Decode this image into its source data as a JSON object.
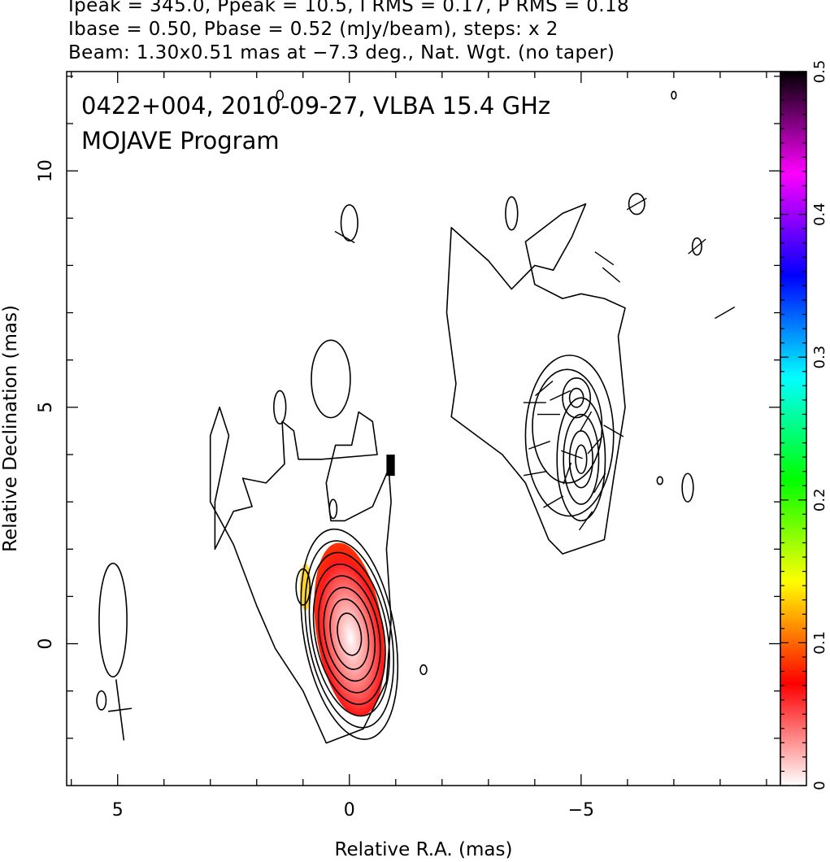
{
  "header": {
    "line1": "Ipeak = 345.0, Ppeak = 10.5, I RMS = 0.17, P RMS = 0.18",
    "line2": "Ibase = 0.50, Pbase = 0.52 (mJy/beam), steps: x 2",
    "line3": "Beam: 1.30x0.51 mas at −7.3 deg., Nat. Wgt. (no taper)"
  },
  "chart_data": {
    "type": "heatmap",
    "title": "0422+004, 2010-09-27, VLBA 15.4 GHz",
    "subtitle": "MOJAVE Program",
    "xlabel": "Relative R.A. (mas)",
    "ylabel": "Relative Declination (mas)",
    "xlim": [
      6.1,
      -9.3
    ],
    "ylim": [
      -3.0,
      12.1
    ],
    "x_ticks": [
      5,
      0,
      -5
    ],
    "x_tick_labels": [
      "5",
      "0",
      "−5"
    ],
    "y_ticks": [
      0,
      5,
      10
    ],
    "y_tick_labels": [
      "0",
      "5",
      "10"
    ],
    "colorbar": {
      "range": [
        0,
        0.5
      ],
      "ticks": [
        0,
        0.1,
        0.2,
        0.3,
        0.4,
        0.5
      ],
      "tick_labels": [
        "0",
        "0.1",
        "0.2",
        "0.3",
        "0.4",
        "0.5"
      ],
      "stops": [
        "#ffffff",
        "#ff0000",
        "#ffff00",
        "#00ff00",
        "#00ffff",
        "#0000ff",
        "#ff00ff",
        "#000000"
      ]
    },
    "beam": {
      "major_mas": 1.3,
      "minor_mas": 0.51,
      "pa_deg": -7.3,
      "center": [
        4.95,
        -1.4
      ]
    },
    "core_contours": {
      "center": [
        0.0,
        0.2
      ],
      "semi_axes_mas": [
        [
          0.25,
          0.45
        ],
        [
          0.4,
          0.75
        ],
        [
          0.53,
          1.0
        ],
        [
          0.64,
          1.25
        ],
        [
          0.74,
          1.5
        ],
        [
          0.82,
          1.75
        ],
        [
          0.9,
          2.0
        ],
        [
          0.98,
          2.25
        ]
      ],
      "pa_deg": -10
    },
    "jet_knot_contours": {
      "center": [
        -5.0,
        3.9
      ],
      "semi_axes_mas": [
        [
          0.12,
          0.3
        ],
        [
          0.25,
          0.6
        ],
        [
          0.38,
          0.95
        ],
        [
          0.52,
          1.3
        ]
      ]
    },
    "jet_knot2_contours": {
      "center": [
        -4.9,
        5.2
      ],
      "semi_axes_mas": [
        [
          0.15,
          0.2
        ],
        [
          0.3,
          0.42
        ]
      ]
    },
    "small_islands": [
      [
        -7.3,
        3.3,
        0.12,
        0.3
      ],
      [
        5.1,
        0.5,
        0.3,
        1.2
      ],
      [
        5.35,
        -1.2,
        0.1,
        0.2
      ],
      [
        -1.6,
        -0.55,
        0.07,
        0.1
      ],
      [
        -6.7,
        3.45,
        0.06,
        0.08
      ],
      [
        -3.5,
        9.1,
        0.13,
        0.35
      ],
      [
        0.0,
        8.9,
        0.18,
        0.38
      ],
      [
        -6.2,
        9.3,
        0.17,
        0.22
      ],
      [
        -7.5,
        8.4,
        0.1,
        0.18
      ],
      [
        1.5,
        5.0,
        0.13,
        0.35
      ],
      [
        0.35,
        2.85,
        0.08,
        0.2
      ],
      [
        -7.0,
        11.6,
        0.05,
        0.08
      ],
      [
        1.5,
        11.6,
        0.07,
        0.1
      ],
      [
        0.4,
        5.6,
        0.42,
        0.82
      ]
    ],
    "pol_region": {
      "center": [
        0.0,
        0.3
      ],
      "rx": 0.72,
      "ry": 1.85
    },
    "evpa_vectors": [
      [
        -4.55,
        5.25,
        25
      ],
      [
        -4.2,
        5.4,
        40
      ],
      [
        -5.1,
        4.7,
        60
      ],
      [
        -5.3,
        4.2,
        50
      ],
      [
        -4.1,
        4.2,
        20
      ],
      [
        -4.7,
        3.6,
        70
      ],
      [
        -5.4,
        3.4,
        60
      ],
      [
        -4.4,
        3.0,
        30
      ],
      [
        -5.1,
        2.6,
        55
      ],
      [
        -4.0,
        3.6,
        10
      ],
      [
        -4.3,
        4.85,
        0
      ],
      [
        -4.0,
        5.1,
        0
      ],
      [
        -5.65,
        7.8,
        -40
      ],
      [
        -5.5,
        8.15,
        -35
      ],
      [
        -6.2,
        9.3,
        30
      ],
      [
        -7.5,
        8.4,
        40
      ],
      [
        -8.1,
        7.0,
        30
      ],
      [
        0.1,
        8.6,
        -30
      ],
      [
        -4.8,
        4.0,
        -20
      ],
      [
        -5.7,
        4.5,
        -30
      ]
    ]
  }
}
